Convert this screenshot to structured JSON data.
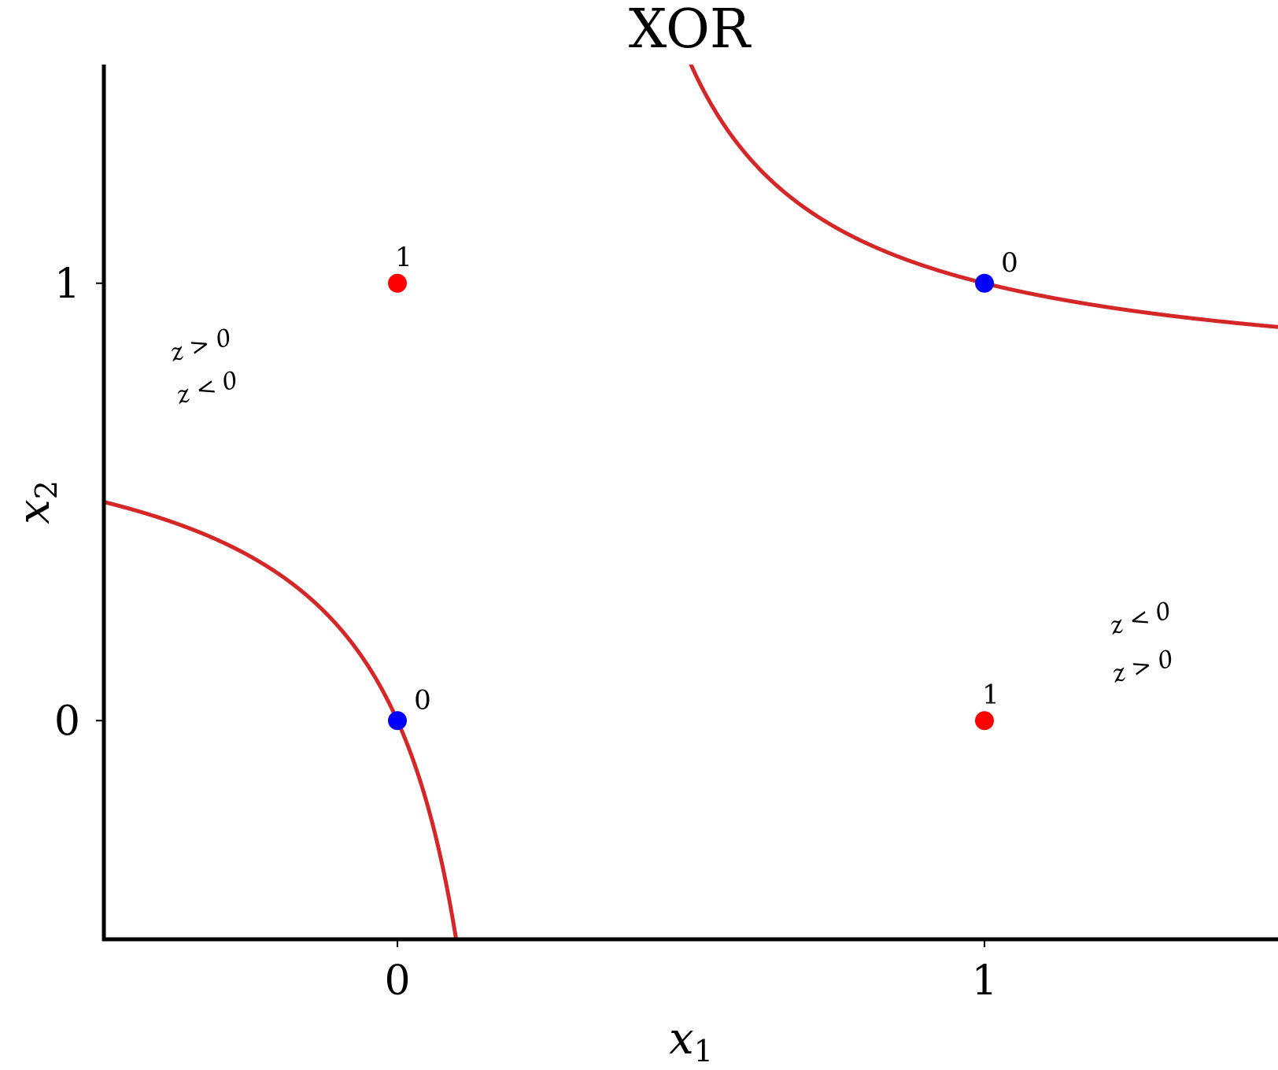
{
  "chart_data": {
    "type": "scatter",
    "title": "XOR",
    "xlabel": {
      "var": "x",
      "sub": "1"
    },
    "ylabel": {
      "var": "x",
      "sub": "2"
    },
    "xlim": [
      -0.5,
      1.5
    ],
    "ylim": [
      -0.5,
      1.5
    ],
    "xticks": [
      0,
      1
    ],
    "yticks": [
      0,
      1
    ],
    "grid": false,
    "points": [
      {
        "x": 0,
        "y": 0,
        "label": "0",
        "color": "#0000ff"
      },
      {
        "x": 1,
        "y": 1,
        "label": "0",
        "color": "#0000ff"
      },
      {
        "x": 0,
        "y": 1,
        "label": "1",
        "color": "#ff0000"
      },
      {
        "x": 1,
        "y": 0,
        "label": "1",
        "color": "#ff0000"
      }
    ],
    "boundary": {
      "color": "#d62728",
      "equation": "(x1 - 0.25)(x2 - 0.75) = 0.1875"
    },
    "region_labels": [
      {
        "above": "z > 0",
        "below": "z < 0"
      },
      {
        "above": "z < 0",
        "below": "z > 0"
      }
    ]
  }
}
